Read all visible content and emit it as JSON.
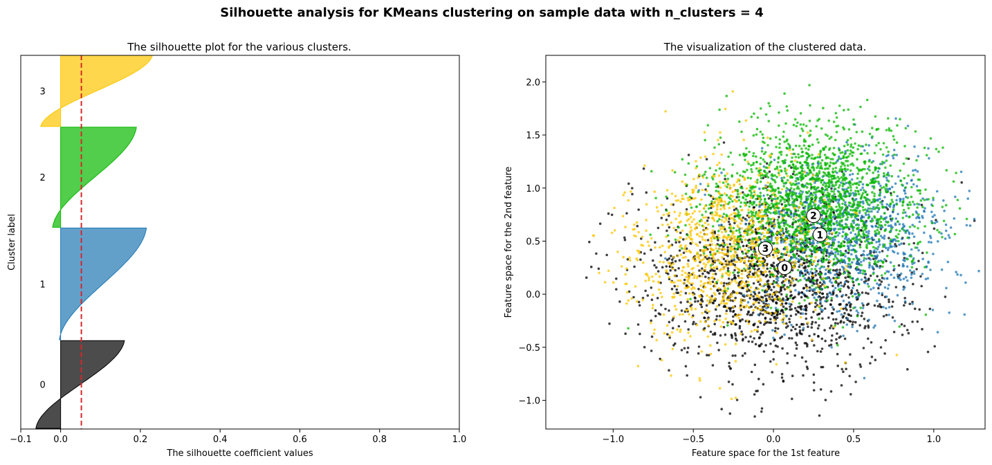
{
  "figure": {
    "suptitle": "Silhouette analysis for KMeans clustering on sample data with n_clusters = 4"
  },
  "chart_data": [
    {
      "type": "area",
      "title": "The silhouette plot for the various clusters.",
      "xlabel": "The silhouette coefficient values",
      "ylabel": "Cluster label",
      "xlim": [
        -0.1,
        1.0
      ],
      "xticks": [
        -0.1,
        0.0,
        0.2,
        0.4,
        0.6,
        0.8,
        1.0
      ],
      "xtick_labels": [
        "−0.1",
        "0.0",
        "0.2",
        "0.4",
        "0.6",
        "0.8",
        "1.0"
      ],
      "average_silhouette_score": 0.052,
      "average_line_color": "#d62728",
      "clusters": [
        {
          "label": "0",
          "color": "#000000",
          "min": -0.062,
          "max": 0.16,
          "size": 1270,
          "y_lower": 10
        },
        {
          "label": "1",
          "color": "#1f77b4",
          "min": -0.003,
          "max": 0.215,
          "size": 1620,
          "y_lower": 1290
        },
        {
          "label": "2",
          "color": "#08b800",
          "min": -0.02,
          "max": 0.19,
          "size": 1450,
          "y_lower": 2920
        },
        {
          "label": "3",
          "color": "#fdc600",
          "min": -0.05,
          "max": 0.23,
          "size": 1030,
          "y_lower": 4380
        }
      ]
    },
    {
      "type": "scatter",
      "title": "The visualization of the clustered data.",
      "xlabel": "Feature space for the 1st feature",
      "ylabel": "Feature space for the 2nd feature",
      "xlim": [
        -1.42,
        1.32
      ],
      "ylim": [
        -1.27,
        2.25
      ],
      "xticks": [
        -1.0,
        -0.5,
        0.0,
        0.5,
        1.0
      ],
      "xtick_labels": [
        "−1.0",
        "−0.5",
        "0.0",
        "0.5",
        "1.0"
      ],
      "yticks": [
        -1.0,
        -0.5,
        0.0,
        0.5,
        1.0,
        1.5,
        2.0
      ],
      "ytick_labels": [
        "−1.0",
        "−0.5",
        "0.0",
        "0.5",
        "1.0",
        "1.5",
        "2.0"
      ],
      "centers": [
        {
          "label": "0",
          "x": 0.07,
          "y": 0.25
        },
        {
          "label": "1",
          "x": 0.29,
          "y": 0.56
        },
        {
          "label": "2",
          "x": 0.25,
          "y": 0.74
        },
        {
          "label": "3",
          "x": -0.05,
          "y": 0.43
        }
      ],
      "clusters": [
        {
          "label": "0",
          "color": "#000000",
          "mean": [
            0.0,
            0.1
          ],
          "sd": [
            0.4,
            0.42
          ],
          "n": 1500
        },
        {
          "label": "1",
          "color": "#1f77b4",
          "mean": [
            0.45,
            0.55
          ],
          "sd": [
            0.3,
            0.38
          ],
          "n": 1000
        },
        {
          "label": "2",
          "color": "#08b800",
          "mean": [
            0.25,
            0.85
          ],
          "sd": [
            0.33,
            0.38
          ],
          "n": 1900
        },
        {
          "label": "3",
          "color": "#fdc600",
          "mean": [
            -0.3,
            0.4
          ],
          "sd": [
            0.3,
            0.42
          ],
          "n": 1000
        }
      ]
    }
  ]
}
